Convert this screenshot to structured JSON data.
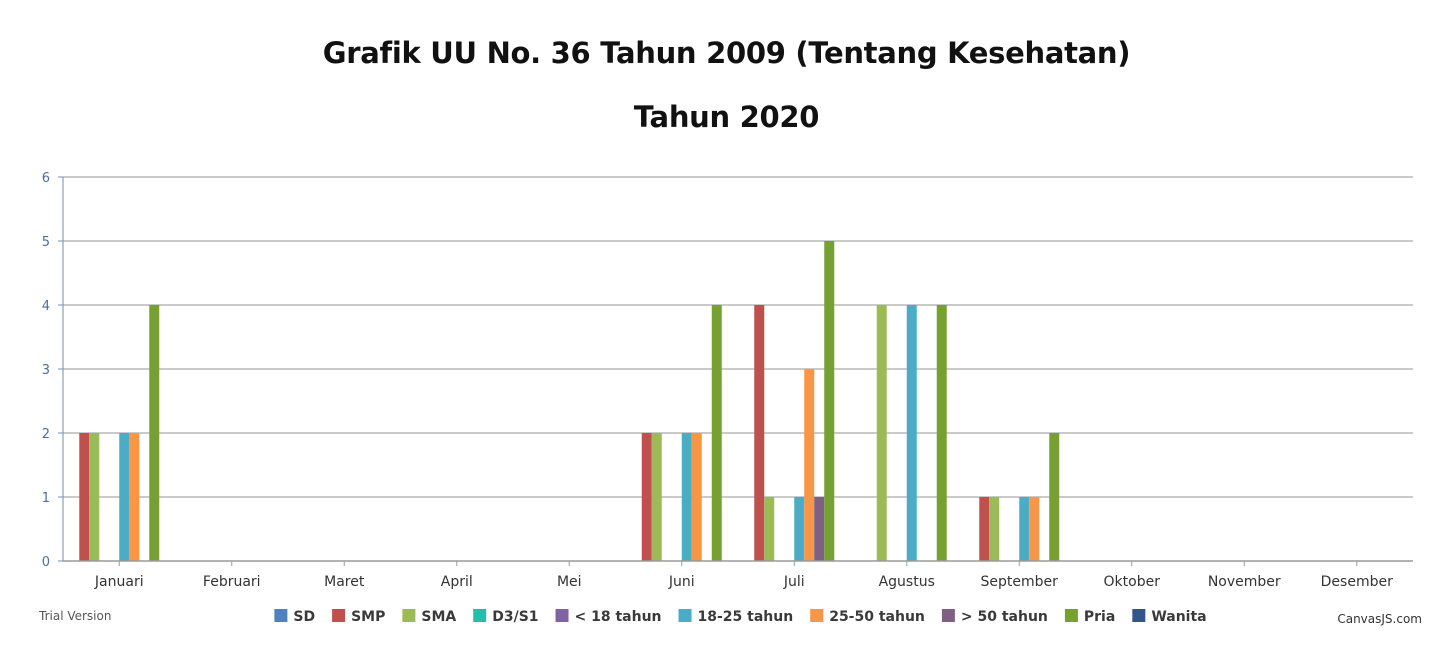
{
  "title": "Grafik UU No. 36 Tahun 2009 (Tentang Kesehatan)",
  "subtitle": "Tahun 2020",
  "footer": {
    "left": "Trial Version",
    "right": "CanvasJS.com"
  },
  "chart_data": {
    "type": "bar",
    "categories": [
      "Januari",
      "Februari",
      "Maret",
      "April",
      "Mei",
      "Juni",
      "Juli",
      "Agustus",
      "September",
      "Oktober",
      "November",
      "Desember"
    ],
    "ylim": [
      0,
      6
    ],
    "yticks": [
      0,
      1,
      2,
      3,
      4,
      5,
      6
    ],
    "grid": true,
    "legend_position": "bottom",
    "series": [
      {
        "name": "SD",
        "color": "#4f81bc",
        "values": [
          0,
          0,
          0,
          0,
          0,
          0,
          0,
          0,
          0,
          0,
          0,
          0
        ]
      },
      {
        "name": "SMP",
        "color": "#c0504e",
        "values": [
          2,
          0,
          0,
          0,
          0,
          2,
          4,
          0,
          1,
          0,
          0,
          0
        ]
      },
      {
        "name": "SMA",
        "color": "#9bbb58",
        "values": [
          2,
          0,
          0,
          0,
          0,
          2,
          1,
          4,
          1,
          0,
          0,
          0
        ]
      },
      {
        "name": "D3/S1",
        "color": "#23bfaa",
        "values": [
          0,
          0,
          0,
          0,
          0,
          0,
          0,
          0,
          0,
          0,
          0,
          0
        ]
      },
      {
        "name": "< 18 tahun",
        "color": "#8064a1",
        "values": [
          0,
          0,
          0,
          0,
          0,
          0,
          0,
          0,
          0,
          0,
          0,
          0
        ]
      },
      {
        "name": "18-25 tahun",
        "color": "#4aacc5",
        "values": [
          2,
          0,
          0,
          0,
          0,
          2,
          1,
          4,
          1,
          0,
          0,
          0
        ]
      },
      {
        "name": "25-50 tahun",
        "color": "#f79647",
        "values": [
          2,
          0,
          0,
          0,
          0,
          2,
          3,
          0,
          1,
          0,
          0,
          0
        ]
      },
      {
        "name": "> 50 tahun",
        "color": "#7f6084",
        "values": [
          0,
          0,
          0,
          0,
          0,
          0,
          1,
          0,
          0,
          0,
          0,
          0
        ]
      },
      {
        "name": "Pria",
        "color": "#77a033",
        "values": [
          4,
          0,
          0,
          0,
          0,
          4,
          5,
          4,
          2,
          0,
          0,
          0
        ]
      },
      {
        "name": "Wanita",
        "color": "#33558b",
        "values": [
          0,
          0,
          0,
          0,
          0,
          0,
          0,
          0,
          0,
          0,
          0,
          0
        ]
      }
    ]
  }
}
